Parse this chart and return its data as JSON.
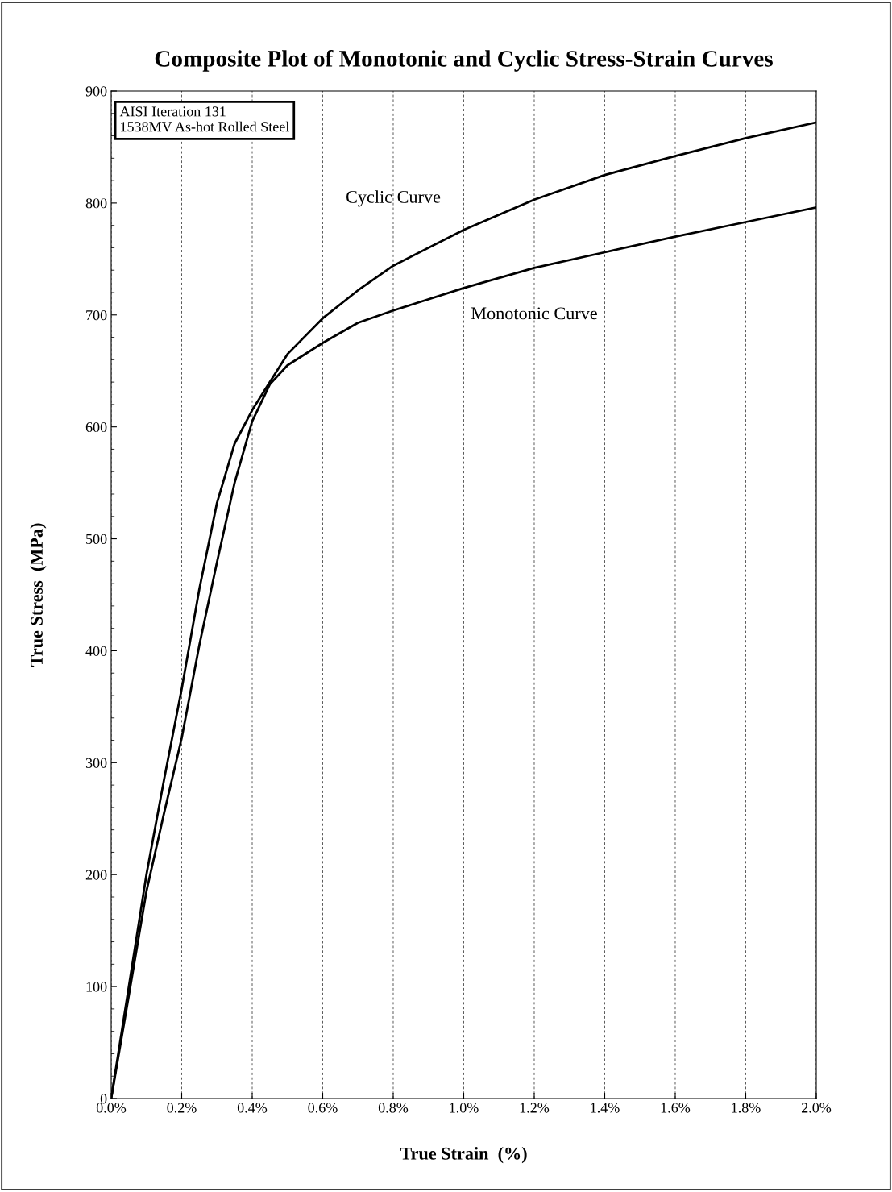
{
  "chart_data": {
    "type": "line",
    "title": "Composite Plot of Monotonic and Cyclic Stress-Strain Curves",
    "xlabel": "True Strain  (%)",
    "ylabel": "True Stress  (MPa)",
    "annotations": [
      "AISI Iteration 131\n1538MV As-hot Rolled Steel"
    ],
    "series": [
      {
        "name": "Cyclic Curve",
        "color": "#000000",
        "x": [
          0,
          0.05,
          0.1,
          0.15,
          0.2,
          0.25,
          0.3,
          0.35,
          0.4,
          0.45,
          0.5,
          0.6,
          0.7,
          0.8,
          1.0,
          1.2,
          1.4,
          1.6,
          1.8,
          2.0
        ],
        "values": [
          0,
          100,
          200,
          285,
          366,
          455,
          532,
          585,
          615,
          640,
          665,
          697,
          722,
          744,
          776,
          803,
          825,
          842,
          858,
          872
        ]
      },
      {
        "name": "Monotonic Curve",
        "color": "#000000",
        "x": [
          0,
          0.05,
          0.1,
          0.15,
          0.2,
          0.25,
          0.3,
          0.35,
          0.4,
          0.45,
          0.5,
          0.6,
          0.7,
          0.8,
          1.0,
          1.2,
          1.4,
          1.6,
          1.8,
          2.0
        ],
        "values": [
          0,
          92,
          185,
          255,
          322,
          405,
          479,
          550,
          605,
          638,
          655,
          675,
          693,
          704,
          724,
          742,
          756,
          770,
          783,
          796
        ]
      }
    ],
    "xlim": [
      0,
      2.0
    ],
    "ylim": [
      0,
      900
    ],
    "xticks": [
      {
        "value": 0.0,
        "label": "0.0%"
      },
      {
        "value": 0.2,
        "label": "0.2%"
      },
      {
        "value": 0.4,
        "label": "0.4%"
      },
      {
        "value": 0.6,
        "label": "0.6%"
      },
      {
        "value": 0.8,
        "label": "0.8%"
      },
      {
        "value": 1.0,
        "label": "1.0%"
      },
      {
        "value": 1.2,
        "label": "1.2%"
      },
      {
        "value": 1.4,
        "label": "1.4%"
      },
      {
        "value": 1.6,
        "label": "1.6%"
      },
      {
        "value": 1.8,
        "label": "1.8%"
      },
      {
        "value": 2.0,
        "label": "2.0%"
      }
    ],
    "yticks": [
      0,
      100,
      200,
      300,
      400,
      500,
      600,
      700,
      800,
      900
    ],
    "grid": "x",
    "marker": "none",
    "line_style": "solid",
    "legend": false
  }
}
